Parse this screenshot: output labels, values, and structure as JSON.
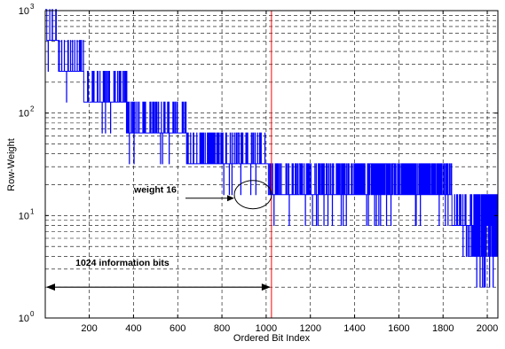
{
  "chart_data": {
    "type": "line",
    "title": "",
    "xlabel": "Ordered Bit Index",
    "ylabel": "Row-Weight",
    "x_scale": "linear",
    "y_scale": "log",
    "xlim": [
      1,
      2048
    ],
    "ylim": [
      1,
      1000
    ],
    "grid": true,
    "grid_style": "dashed",
    "x_ticks": [
      200,
      400,
      600,
      800,
      1000,
      1200,
      1400,
      1600,
      1800,
      2000
    ],
    "x_tick_labels": [
      "200",
      "400",
      "600",
      "800",
      "1000",
      "1200",
      "1400",
      "1600",
      "1800",
      "2000"
    ],
    "y_ticks": [
      1,
      10,
      100,
      1000
    ],
    "y_tick_labels": [
      {
        "base": "10",
        "exp": "0"
      },
      {
        "base": "10",
        "exp": "1"
      },
      {
        "base": "10",
        "exp": "2"
      },
      {
        "base": "10",
        "exp": "3"
      }
    ],
    "series": [
      {
        "color": "#0000ff",
        "description": "row weight per ordered bit index; values are powers of two",
        "levels": [
          {
            "x_start": 1,
            "x_end": 8,
            "base_weight": 1024
          },
          {
            "x_start": 8,
            "x_end": 60,
            "base_weight": 512
          },
          {
            "x_start": 60,
            "x_end": 175,
            "base_weight": 256
          },
          {
            "x_start": 175,
            "x_end": 370,
            "base_weight": 128
          },
          {
            "x_start": 370,
            "x_end": 640,
            "base_weight": 64
          },
          {
            "x_start": 640,
            "x_end": 1010,
            "base_weight": 32
          },
          {
            "x_start": 1010,
            "x_end": 1380,
            "base_weight": 16
          },
          {
            "x_start": 1380,
            "x_end": 1840,
            "base_weight": 16
          },
          {
            "x_start": 1840,
            "x_end": 1940,
            "base_weight": 8
          },
          {
            "x_start": 1940,
            "x_end": 2048,
            "base_weight": 4
          }
        ]
      }
    ],
    "reference_line": {
      "x": 1024,
      "color": "#ff0000"
    },
    "annotations": [
      {
        "text": "weight 16",
        "target_x": 900,
        "target_y": 16
      },
      {
        "text": "1024 information bits",
        "from_x": 1,
        "to_x": 1024,
        "y": 2
      }
    ]
  }
}
